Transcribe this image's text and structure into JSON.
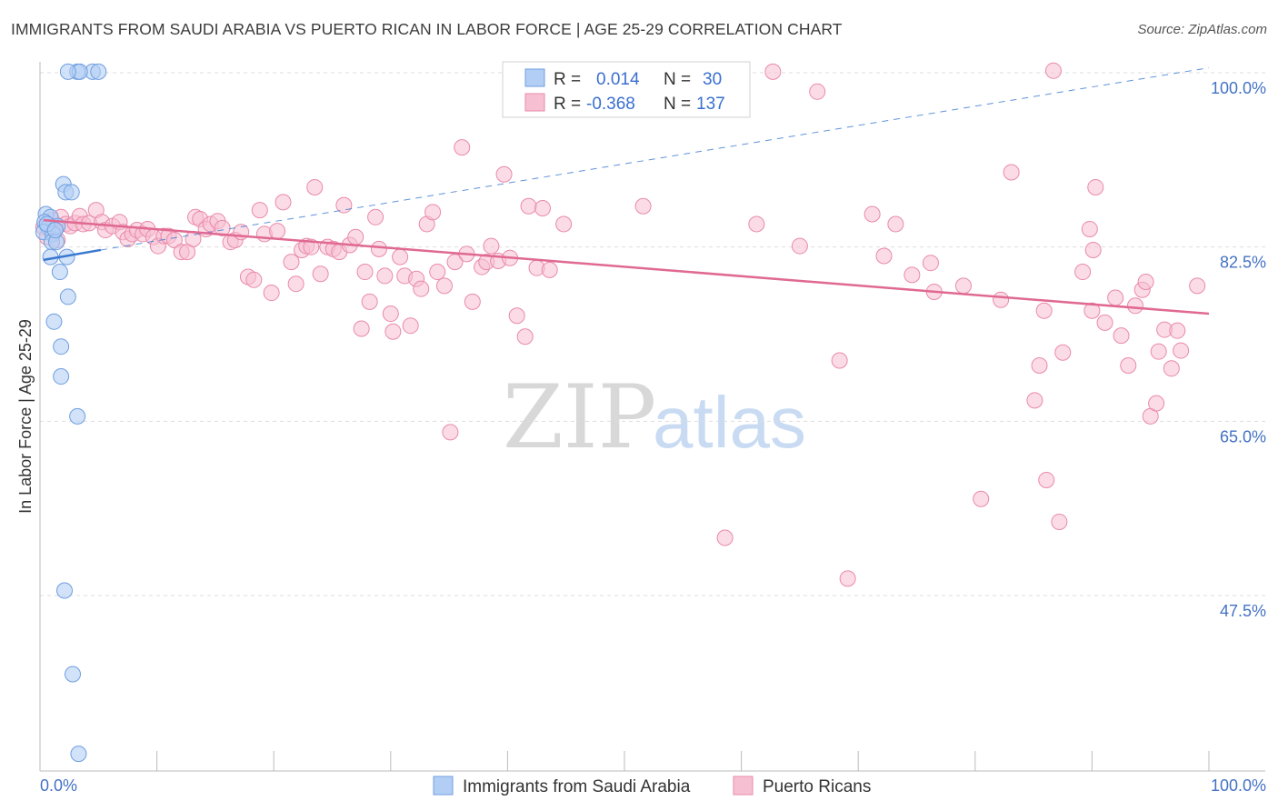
{
  "header": {
    "title": "IMMIGRANTS FROM SAUDI ARABIA VS PUERTO RICAN IN LABOR FORCE | AGE 25-29 CORRELATION CHART",
    "source": "Source: ZipAtlas.com"
  },
  "watermark": {
    "zip": "ZIP",
    "atlas": "atlas"
  },
  "legend_top": {
    "rows": [
      {
        "r_label": "R =",
        "r_value": "0.014",
        "n_label": "N =",
        "n_value": "30"
      },
      {
        "r_label": "R =",
        "r_value": "-0.368",
        "n_label": "N =",
        "n_value": "137"
      }
    ]
  },
  "colors": {
    "blue_fill": "#b3cef5",
    "blue_stroke": "#6f9ee0",
    "blue_line": "#3a78d0",
    "pink_fill": "#f7c0d2",
    "pink_stroke": "#e98aaa",
    "pink_line": "#e06992",
    "tick_text": "#4472c4",
    "grid": "#dddddd"
  },
  "chart_data": {
    "type": "scatter",
    "title": "IMMIGRANTS FROM SAUDI ARABIA VS PUERTO RICAN IN LABOR FORCE | AGE 25-29 CORRELATION CHART",
    "xlabel": "",
    "ylabel": "In Labor Force | Age 25-29",
    "xlim": [
      0,
      100
    ],
    "ylim": [
      29,
      102
    ],
    "x_tick_labels": [
      "0.0%",
      "100.0%"
    ],
    "y_ticks": [
      100,
      82.5,
      65,
      47.5
    ],
    "y_tick_labels": [
      "100.0%",
      "82.5%",
      "65.0%",
      "47.5%"
    ],
    "grid": true,
    "legend_position": "top-center",
    "series": [
      {
        "name": "Immigrants from Saudi Arabia",
        "r": 0.014,
        "n": 30,
        "trend": {
          "x": [
            0.3,
            5.2
          ],
          "y": [
            81.2,
            82.2
          ],
          "extended_to": [
            100,
            100.5
          ]
        },
        "points": [
          [
            4.5,
            100.1
          ],
          [
            5.0,
            100.1
          ],
          [
            3.2,
            100.1
          ],
          [
            3.4,
            100.1
          ],
          [
            2.4,
            100.1
          ],
          [
            2.0,
            88.8
          ],
          [
            2.2,
            88
          ],
          [
            2.7,
            88
          ],
          [
            0.5,
            85.8
          ],
          [
            0.9,
            85.5
          ],
          [
            0.4,
            85
          ],
          [
            0.7,
            84.5
          ],
          [
            1.5,
            84.6
          ],
          [
            0.3,
            84
          ],
          [
            1.1,
            83.8
          ],
          [
            1.0,
            83
          ],
          [
            1.4,
            83
          ],
          [
            0.9,
            81.5
          ],
          [
            2.3,
            81.5
          ],
          [
            1.7,
            80
          ],
          [
            2.4,
            77.5
          ],
          [
            1.2,
            75
          ],
          [
            1.8,
            72.5
          ],
          [
            1.8,
            69.5
          ],
          [
            3.2,
            65.5
          ],
          [
            2.1,
            48
          ],
          [
            2.8,
            39.6
          ],
          [
            3.3,
            31.6
          ],
          [
            0.6,
            84.8
          ],
          [
            1.3,
            84.2
          ]
        ]
      },
      {
        "name": "Puerto Ricans",
        "r": -0.368,
        "n": 137,
        "trend": {
          "x": [
            0.3,
            100
          ],
          "y": [
            85.2,
            75.8
          ]
        },
        "points": [
          [
            0.3,
            84.5
          ],
          [
            0.6,
            83.5
          ],
          [
            1.0,
            85.2
          ],
          [
            1.2,
            84
          ],
          [
            1.5,
            83.2
          ],
          [
            1.8,
            85.5
          ],
          [
            2.2,
            84.8
          ],
          [
            2.6,
            84.6
          ],
          [
            3.0,
            84.9
          ],
          [
            3.4,
            85.6
          ],
          [
            3.7,
            84.8
          ],
          [
            4.2,
            84.9
          ],
          [
            4.8,
            86.2
          ],
          [
            5.3,
            85
          ],
          [
            5.6,
            84.2
          ],
          [
            6.2,
            84.6
          ],
          [
            6.8,
            85
          ],
          [
            7.1,
            84
          ],
          [
            7.5,
            83.3
          ],
          [
            7.9,
            83.8
          ],
          [
            8.3,
            84.2
          ],
          [
            8.8,
            83.8
          ],
          [
            9.2,
            84.3
          ],
          [
            9.7,
            83.5
          ],
          [
            10.1,
            82.6
          ],
          [
            10.6,
            83.6
          ],
          [
            11.0,
            83.6
          ],
          [
            11.5,
            83.2
          ],
          [
            12.1,
            82
          ],
          [
            12.6,
            82
          ],
          [
            13.1,
            83.3
          ],
          [
            13.3,
            85.5
          ],
          [
            13.7,
            85.3
          ],
          [
            14.2,
            84.3
          ],
          [
            14.6,
            84.8
          ],
          [
            15.2,
            85.1
          ],
          [
            15.6,
            84.4
          ],
          [
            16.3,
            83
          ],
          [
            16.7,
            83.2
          ],
          [
            17.2,
            84
          ],
          [
            17.8,
            79.5
          ],
          [
            18.3,
            79.2
          ],
          [
            18.8,
            86.2
          ],
          [
            19.2,
            83.8
          ],
          [
            19.8,
            77.9
          ],
          [
            20.3,
            84.1
          ],
          [
            20.8,
            87
          ],
          [
            21.5,
            81
          ],
          [
            21.9,
            78.8
          ],
          [
            22.4,
            82.2
          ],
          [
            22.8,
            82.6
          ],
          [
            23.2,
            82.5
          ],
          [
            23.5,
            88.5
          ],
          [
            24.0,
            79.8
          ],
          [
            24.6,
            82.5
          ],
          [
            25.1,
            82.3
          ],
          [
            25.6,
            82
          ],
          [
            26.0,
            86.7
          ],
          [
            26.5,
            82.7
          ],
          [
            27.0,
            83.5
          ],
          [
            27.5,
            74.3
          ],
          [
            27.8,
            80
          ],
          [
            28.2,
            77
          ],
          [
            28.7,
            85.5
          ],
          [
            29.0,
            82.3
          ],
          [
            29.5,
            79.6
          ],
          [
            30.0,
            75.8
          ],
          [
            30.2,
            74
          ],
          [
            30.8,
            81.5
          ],
          [
            31.2,
            79.6
          ],
          [
            31.7,
            74.6
          ],
          [
            32.2,
            79.3
          ],
          [
            32.6,
            78.3
          ],
          [
            33.1,
            84.8
          ],
          [
            33.6,
            86
          ],
          [
            34.0,
            80
          ],
          [
            34.6,
            78.6
          ],
          [
            35.1,
            63.9
          ],
          [
            35.5,
            81
          ],
          [
            36.1,
            92.5
          ],
          [
            36.5,
            81.8
          ],
          [
            37.0,
            77
          ],
          [
            37.8,
            80.5
          ],
          [
            38.2,
            81
          ],
          [
            38.6,
            82.6
          ],
          [
            39.2,
            81.1
          ],
          [
            39.7,
            89.8
          ],
          [
            40.2,
            81.4
          ],
          [
            40.8,
            75.6
          ],
          [
            41.5,
            73.5
          ],
          [
            41.8,
            86.6
          ],
          [
            42.5,
            80.4
          ],
          [
            43.0,
            86.4
          ],
          [
            43.6,
            80.2
          ],
          [
            44.2,
            100.2
          ],
          [
            44.8,
            84.8
          ],
          [
            45.5,
            100.3
          ],
          [
            51.6,
            86.6
          ],
          [
            56.5,
            100.3
          ],
          [
            58.6,
            53.3
          ],
          [
            61.3,
            84.8
          ],
          [
            62.7,
            100.1
          ],
          [
            65.0,
            82.6
          ],
          [
            66.5,
            98.1
          ],
          [
            68.4,
            71.1
          ],
          [
            69.1,
            49.2
          ],
          [
            71.2,
            85.8
          ],
          [
            72.2,
            81.6
          ],
          [
            73.2,
            84.8
          ],
          [
            74.6,
            79.7
          ],
          [
            76.2,
            80.9
          ],
          [
            79.0,
            78.6
          ],
          [
            80.5,
            57.2
          ],
          [
            82.2,
            77.2
          ],
          [
            83.1,
            90
          ],
          [
            85.1,
            67.1
          ],
          [
            85.5,
            70.6
          ],
          [
            86.1,
            59.1
          ],
          [
            86.7,
            100.2
          ],
          [
            87.2,
            54.9
          ],
          [
            87.5,
            71.9
          ],
          [
            89.8,
            84.3
          ],
          [
            90.1,
            82.2
          ],
          [
            90.3,
            88.5
          ],
          [
            91.1,
            74.9
          ],
          [
            92.0,
            77.4
          ],
          [
            92.5,
            73.6
          ],
          [
            93.1,
            70.6
          ],
          [
            93.7,
            76.6
          ],
          [
            94.3,
            78.2
          ],
          [
            95.0,
            65.5
          ],
          [
            95.5,
            66.8
          ],
          [
            95.7,
            72
          ],
          [
            96.2,
            74.2
          ],
          [
            96.8,
            70.3
          ],
          [
            97.3,
            74.1
          ],
          [
            97.6,
            72.1
          ],
          [
            99.0,
            78.6
          ],
          [
            89.2,
            80
          ],
          [
            85.9,
            76.1
          ],
          [
            76.5,
            78
          ],
          [
            90.0,
            76.1
          ],
          [
            94.6,
            79
          ]
        ]
      }
    ]
  },
  "bottom_legend": {
    "items": [
      {
        "label": "Immigrants from Saudi Arabia"
      },
      {
        "label": "Puerto Ricans"
      }
    ]
  }
}
